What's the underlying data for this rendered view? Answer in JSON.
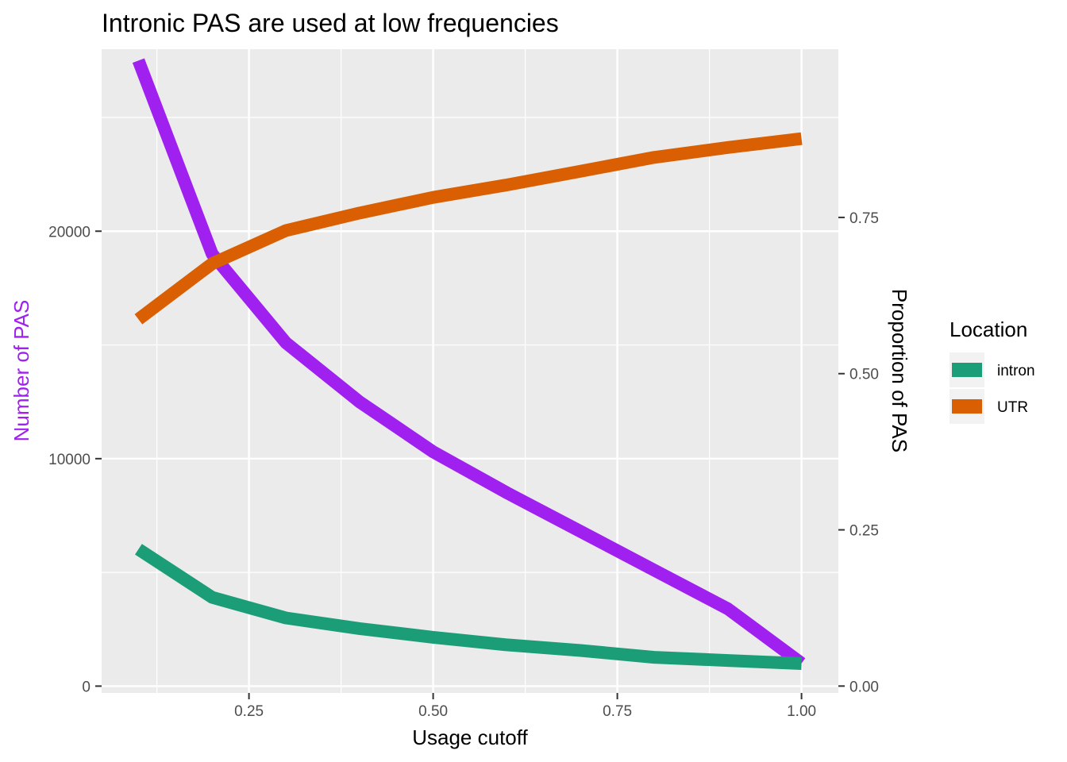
{
  "chart_data": {
    "type": "line",
    "title": "Intronic PAS are used at low frequencies",
    "xlabel": "Usage cutoff",
    "ylabel_left": "Number of PAS",
    "ylabel_right": "Proportion of PAS",
    "x": [
      0.1,
      0.2,
      0.3,
      0.4,
      0.5,
      0.6,
      0.7,
      0.8,
      0.9,
      1.0
    ],
    "xlim": [
      0.05,
      1.05
    ],
    "ylim_left": [
      -300,
      28000
    ],
    "ylim_right": [
      -0.011,
      1.0192
    ],
    "x_ticks": [
      "0.25",
      "0.50",
      "0.75",
      "1.00"
    ],
    "y_ticks_left": [
      "0",
      "10000",
      "20000"
    ],
    "y_ticks_right": [
      "0.00",
      "0.25",
      "0.50",
      "0.75"
    ],
    "series": [
      {
        "axis": "left",
        "color": "#a020f0",
        "values": [
          27500,
          19000,
          15100,
          12500,
          10300,
          8500,
          6800,
          5100,
          3400,
          1000
        ]
      },
      {
        "name": "intron",
        "axis": "right",
        "color": "#1b9e77",
        "values": [
          0.219,
          0.142,
          0.109,
          0.092,
          0.078,
          0.066,
          0.057,
          0.046,
          0.041,
          0.036
        ]
      },
      {
        "name": "UTR",
        "axis": "right",
        "color": "#d95f02",
        "values": [
          0.587,
          0.676,
          0.729,
          0.757,
          0.782,
          0.802,
          0.824,
          0.846,
          0.862,
          0.876
        ]
      }
    ],
    "legend": {
      "title": "Location",
      "entries": [
        "intron",
        "UTR"
      ],
      "placement": "right"
    },
    "grid": true,
    "colors": {
      "panel": "#ebebeb",
      "grid_major": "#ffffff",
      "left_axis": "#a020f0"
    }
  }
}
